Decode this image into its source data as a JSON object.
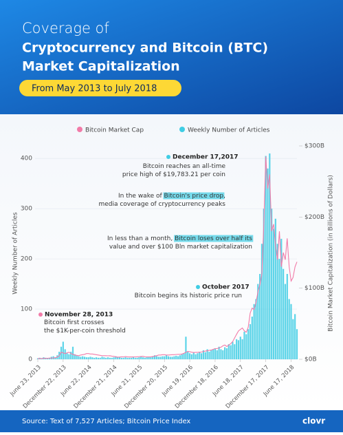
{
  "header": {
    "title_line1": "Coverage of",
    "title_line2": "Cryptocurrency and Bitcoin (BTC)",
    "title_line3": "Market Capitalization",
    "subtitle": "From May 2013 to July 2018"
  },
  "chart_data": {
    "type": "bar-line",
    "ylabel": "Weekly Number of Articles",
    "y2label": "Bitcoin Market Capitalization (in Billions of Dollars)",
    "ylim": [
      0,
      425
    ],
    "yticks": [
      0,
      100,
      200,
      300,
      400
    ],
    "y2lim": [
      0,
      300
    ],
    "y2ticks": [
      {
        "value": 0,
        "label": "$0B"
      },
      {
        "value": 100,
        "label": "$100B"
      },
      {
        "value": 200,
        "label": "$200B"
      },
      {
        "value": 300,
        "label": "$300B"
      }
    ],
    "grid": true,
    "categories": [
      "June 23, 2013",
      null,
      null,
      null,
      null,
      null,
      null,
      null,
      null,
      null,
      null,
      null,
      null,
      "December 22, 2013",
      null,
      null,
      null,
      null,
      null,
      null,
      null,
      null,
      null,
      null,
      null,
      null,
      "June 22, 2014",
      null,
      null,
      null,
      null,
      null,
      null,
      null,
      null,
      null,
      null,
      null,
      null,
      "December 21, 2014",
      null,
      null,
      null,
      null,
      null,
      null,
      null,
      null,
      null,
      null,
      null,
      null,
      "June 21, 2015",
      null,
      null,
      null,
      null,
      null,
      null,
      null,
      null,
      null,
      null,
      null,
      null,
      "December 20, 2015",
      null,
      null,
      null,
      null,
      null,
      null,
      null,
      null,
      null,
      null,
      null,
      null,
      "June 19, 2016",
      null,
      null,
      null,
      null,
      null,
      null,
      null,
      null,
      null,
      null,
      null,
      null,
      "December 18, 2016",
      null,
      null,
      null,
      null,
      null,
      null,
      null,
      null,
      null,
      null,
      null,
      null,
      "June 18, 2017",
      null,
      null,
      null,
      null,
      null,
      null,
      null,
      null,
      null,
      null,
      null,
      null,
      "December 17, 2017",
      null,
      null,
      null,
      null,
      null,
      null,
      null,
      null,
      null,
      null,
      null,
      null,
      "June 17, 2018",
      null,
      null,
      null
    ],
    "series": [
      {
        "name": "Bitcoin Market Cap",
        "color": "#f27ba8",
        "axis": "y2",
        "kind": "line",
        "values": [
          1.2,
          1.1,
          1.2,
          1.4,
          1.4,
          1.5,
          1.6,
          1.7,
          1.8,
          2.2,
          3,
          5,
          10,
          9,
          8,
          9,
          10,
          8,
          7,
          6,
          5.5,
          5,
          6,
          6.5,
          7,
          8,
          8,
          7.5,
          7.5,
          7,
          6.5,
          6,
          5.5,
          5,
          5,
          5,
          4.8,
          5,
          4.5,
          4.2,
          3.5,
          3,
          3.2,
          3.5,
          3.4,
          3.8,
          3.5,
          3.3,
          3.4,
          3.3,
          3.4,
          3.6,
          3.7,
          4,
          4.2,
          3.5,
          3.4,
          3.4,
          3.5,
          4,
          4.5,
          5,
          6,
          6,
          6.5,
          6.5,
          6,
          6,
          6.2,
          6.5,
          6.5,
          6.8,
          7,
          7,
          7.5,
          8.5,
          10,
          11,
          10.5,
          10,
          9.5,
          9.8,
          9.8,
          10,
          10.2,
          11,
          11.5,
          12,
          12.5,
          13,
          14,
          15,
          15,
          16,
          17,
          19,
          20,
          18,
          20,
          22,
          25,
          30,
          35,
          40,
          42,
          44,
          40,
          38,
          45,
          65,
          72,
          70,
          80,
          95,
          105,
          120,
          190,
          285,
          240,
          260,
          180,
          190,
          160,
          140,
          180,
          130,
          150,
          140,
          170,
          130,
          110,
          115,
          130,
          137
        ]
      },
      {
        "name": "Weekly Number of Articles",
        "color": "#3fcde4",
        "axis": "y",
        "kind": "bar",
        "values": [
          2,
          3,
          2,
          4,
          3,
          2,
          3,
          5,
          6,
          4,
          8,
          15,
          25,
          35,
          20,
          12,
          10,
          15,
          25,
          10,
          8,
          6,
          5,
          6,
          5,
          4,
          4,
          5,
          4,
          3,
          4,
          3,
          3,
          5,
          4,
          3,
          4,
          3,
          3,
          4,
          6,
          5,
          4,
          3,
          3,
          4,
          3,
          3,
          3,
          4,
          3,
          3,
          4,
          5,
          4,
          3,
          4,
          5,
          4,
          6,
          8,
          6,
          5,
          5,
          6,
          6,
          8,
          6,
          5,
          5,
          6,
          7,
          6,
          8,
          10,
          12,
          45,
          15,
          12,
          10,
          14,
          10,
          12,
          15,
          12,
          18,
          14,
          20,
          15,
          18,
          20,
          22,
          18,
          25,
          20,
          18,
          24,
          22,
          30,
          28,
          35,
          30,
          40,
          38,
          45,
          40,
          55,
          50,
          60,
          70,
          85,
          110,
          120,
          150,
          170,
          230,
          300,
          405,
          380,
          410,
          300,
          260,
          280,
          230,
          200,
          240,
          180,
          150,
          170,
          120,
          110,
          80,
          90,
          60
        ]
      }
    ],
    "annotations": [
      {
        "title": "December 17,2017",
        "lines": [
          [
            "Bitcoin reaches an all-time"
          ],
          [
            "price high of $19,783.21 per coin"
          ]
        ]
      },
      {
        "lines": [
          [
            "In the wake of ",
            {
              "text": "Bitcoin's price drop",
              "highlight": true
            },
            ","
          ],
          [
            "media coverage of cryptocurrency peaks"
          ]
        ]
      },
      {
        "lines": [
          [
            "In less than a month, ",
            {
              "text": "Bitcoin loses over half its",
              "highlight": true
            }
          ],
          [
            "value and over $100 Bln market capitalization"
          ]
        ]
      },
      {
        "title": "October 2017",
        "lines": [
          [
            "Bitcoin begins its historic price run"
          ]
        ]
      },
      {
        "title": "November 28, 2013",
        "lines": [
          [
            "Bitcoin first crosses"
          ],
          [
            "the $1K-per-coin threshold"
          ]
        ]
      }
    ]
  },
  "footer": {
    "source": "Source: Text of 7,527 Articles; Bitcoin Price Index",
    "logo": "clovr"
  }
}
